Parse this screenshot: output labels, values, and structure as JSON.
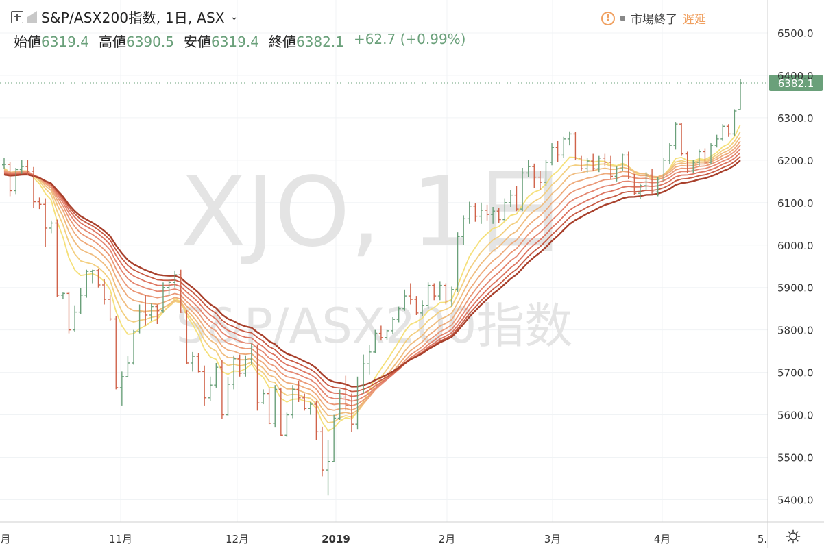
{
  "header": {
    "symbol_title": "S&P/ASX200指数, 1日, ASX",
    "chevron": "⌄",
    "ohlc": [
      {
        "label": "始値",
        "value": "6319.4"
      },
      {
        "label": "高値",
        "value": "6390.5"
      },
      {
        "label": "安値",
        "value": "6319.4"
      },
      {
        "label": "終値",
        "value": "6382.1"
      }
    ],
    "change": "+62.7 (+0.99%)",
    "market_status": "市場終了",
    "delay_label": "遅延",
    "warn_glyph": "!"
  },
  "watermark": {
    "ticker": "XJO, 1日",
    "name": "S&P/ASX200指数"
  },
  "icons": [
    "plus-icon",
    "flag-icon",
    "warning-icon",
    "gear-icon"
  ],
  "colors": {
    "up": "#6aa07a",
    "down": "#d0634a",
    "ribbon": [
      "#f5e07a",
      "#f3cf80",
      "#f0bc7e",
      "#eeaa7a",
      "#ea9776",
      "#e48670",
      "#dd7460",
      "#c75a44",
      "#a8402c"
    ]
  },
  "chart_data": {
    "type": "candlestick",
    "y_range": [
      5340,
      6580
    ],
    "y_ticks": [
      "6500.0",
      "6400.0",
      "6300.0",
      "6200.0",
      "6100.0",
      "6000.0",
      "5900.0",
      "5800.0",
      "5700.0",
      "5600.0",
      "5500.0",
      "5400.0"
    ],
    "x_tick_labels": [
      "月",
      "11月",
      "12月",
      "2019",
      "2月",
      "3月",
      "4月",
      "5."
    ],
    "last_price": "6382.1",
    "last_value": 6382.1,
    "bars": [
      [
        6189,
        6205,
        6180,
        6190
      ],
      [
        6190,
        6195,
        6115,
        6128
      ],
      [
        6128,
        6182,
        6120,
        6178
      ],
      [
        6178,
        6200,
        6168,
        6185
      ],
      [
        6185,
        6200,
        6166,
        6174
      ],
      [
        6174,
        6184,
        6088,
        6102
      ],
      [
        6102,
        6112,
        6085,
        6096
      ],
      [
        6096,
        6110,
        5996,
        6040
      ],
      [
        6040,
        6058,
        6028,
        6052
      ],
      [
        6052,
        6060,
        5878,
        5882
      ],
      [
        5882,
        5888,
        5872,
        5886
      ],
      [
        5886,
        5890,
        5792,
        5800
      ],
      [
        5800,
        5858,
        5796,
        5842
      ],
      [
        5842,
        5898,
        5838,
        5882
      ],
      [
        5882,
        5942,
        5876,
        5938
      ],
      [
        5938,
        5942,
        5910,
        5940
      ],
      [
        5940,
        5944,
        5900,
        5906
      ],
      [
        5906,
        5920,
        5860,
        5872
      ],
      [
        5872,
        5882,
        5822,
        5826
      ],
      [
        5826,
        5832,
        5660,
        5664
      ],
      [
        5664,
        5702,
        5622,
        5690
      ],
      [
        5690,
        5738,
        5688,
        5722
      ],
      [
        5722,
        5800,
        5718,
        5796
      ],
      [
        5796,
        5860,
        5792,
        5842
      ],
      [
        5842,
        5882,
        5810,
        5835
      ],
      [
        5835,
        5862,
        5822,
        5855
      ],
      [
        5855,
        5860,
        5814,
        5845
      ],
      [
        5845,
        5912,
        5840,
        5900
      ],
      [
        5900,
        5920,
        5880,
        5912
      ],
      [
        5912,
        5940,
        5900,
        5930
      ],
      [
        5930,
        5942,
        5840,
        5842
      ],
      [
        5842,
        5846,
        5720,
        5722
      ],
      [
        5722,
        5748,
        5702,
        5738
      ],
      [
        5738,
        5746,
        5700,
        5702
      ],
      [
        5702,
        5716,
        5622,
        5640
      ],
      [
        5640,
        5690,
        5632,
        5670
      ],
      [
        5670,
        5722,
        5664,
        5712
      ],
      [
        5712,
        5730,
        5590,
        5600
      ],
      [
        5600,
        5688,
        5598,
        5672
      ],
      [
        5672,
        5740,
        5660,
        5732
      ],
      [
        5732,
        5742,
        5690,
        5698
      ],
      [
        5698,
        5740,
        5690,
        5730
      ],
      [
        5730,
        5768,
        5718,
        5760
      ],
      [
        5760,
        5766,
        5610,
        5628
      ],
      [
        5628,
        5660,
        5625,
        5650
      ],
      [
        5650,
        5662,
        5578,
        5580
      ],
      [
        5580,
        5670,
        5570,
        5660
      ],
      [
        5660,
        5664,
        5550,
        5552
      ],
      [
        5552,
        5605,
        5548,
        5600
      ],
      [
        5600,
        5670,
        5592,
        5660
      ],
      [
        5660,
        5680,
        5630,
        5640
      ],
      [
        5640,
        5650,
        5610,
        5615
      ],
      [
        5615,
        5630,
        5600,
        5625
      ],
      [
        5625,
        5632,
        5540,
        5560
      ],
      [
        5560,
        5572,
        5455,
        5470
      ],
      [
        5470,
        5540,
        5410,
        5490
      ],
      [
        5490,
        5600,
        5488,
        5592
      ],
      [
        5592,
        5660,
        5588,
        5642
      ],
      [
        5642,
        5692,
        5610,
        5622
      ],
      [
        5622,
        5650,
        5560,
        5578
      ],
      [
        5578,
        5690,
        5565,
        5668
      ],
      [
        5668,
        5742,
        5650,
        5720
      ],
      [
        5720,
        5765,
        5695,
        5748
      ],
      [
        5748,
        5800,
        5745,
        5792
      ],
      [
        5792,
        5810,
        5775,
        5782
      ],
      [
        5782,
        5800,
        5776,
        5798
      ],
      [
        5798,
        5830,
        5790,
        5825
      ],
      [
        5825,
        5855,
        5818,
        5850
      ],
      [
        5850,
        5895,
        5845,
        5880
      ],
      [
        5880,
        5910,
        5860,
        5872
      ],
      [
        5872,
        5880,
        5835,
        5840
      ],
      [
        5840,
        5870,
        5832,
        5858
      ],
      [
        5858,
        5912,
        5850,
        5905
      ],
      [
        5905,
        5910,
        5870,
        5880
      ],
      [
        5880,
        5915,
        5870,
        5905
      ],
      [
        5905,
        5910,
        5860,
        5868
      ],
      [
        5868,
        5902,
        5855,
        5895
      ],
      [
        5895,
        6030,
        5890,
        6020
      ],
      [
        6020,
        6070,
        6000,
        6062
      ],
      [
        6062,
        6102,
        6050,
        6092
      ],
      [
        6092,
        6098,
        6055,
        6068
      ],
      [
        6068,
        6100,
        6050,
        6082
      ],
      [
        6082,
        6095,
        6058,
        6072
      ],
      [
        6072,
        6090,
        6050,
        6080
      ],
      [
        6080,
        6088,
        6052,
        6060
      ],
      [
        6060,
        6110,
        6056,
        6100
      ],
      [
        6100,
        6130,
        6090,
        6118
      ],
      [
        6118,
        6140,
        6080,
        6085
      ],
      [
        6085,
        6182,
        6080,
        6170
      ],
      [
        6170,
        6200,
        6160,
        6185
      ],
      [
        6185,
        6192,
        6135,
        6160
      ],
      [
        6160,
        6175,
        6130,
        6148
      ],
      [
        6148,
        6200,
        6140,
        6195
      ],
      [
        6195,
        6240,
        6188,
        6230
      ],
      [
        6230,
        6245,
        6195,
        6212
      ],
      [
        6212,
        6255,
        6205,
        6250
      ],
      [
        6250,
        6268,
        6235,
        6262
      ],
      [
        6262,
        6266,
        6200,
        6205
      ],
      [
        6205,
        6210,
        6175,
        6180
      ],
      [
        6180,
        6205,
        6170,
        6198
      ],
      [
        6198,
        6215,
        6175,
        6180
      ],
      [
        6180,
        6210,
        6172,
        6205
      ],
      [
        6205,
        6215,
        6185,
        6195
      ],
      [
        6195,
        6210,
        6155,
        6162
      ],
      [
        6162,
        6185,
        6150,
        6180
      ],
      [
        6180,
        6215,
        6175,
        6212
      ],
      [
        6212,
        6220,
        6155,
        6160
      ],
      [
        6160,
        6168,
        6118,
        6122
      ],
      [
        6122,
        6145,
        6108,
        6140
      ],
      [
        6140,
        6172,
        6130,
        6165
      ],
      [
        6165,
        6180,
        6120,
        6125
      ],
      [
        6125,
        6160,
        6115,
        6155
      ],
      [
        6155,
        6205,
        6150,
        6200
      ],
      [
        6200,
        6240,
        6190,
        6235
      ],
      [
        6235,
        6290,
        6225,
        6285
      ],
      [
        6285,
        6288,
        6210,
        6215
      ],
      [
        6215,
        6220,
        6170,
        6175
      ],
      [
        6175,
        6200,
        6170,
        6195
      ],
      [
        6195,
        6225,
        6185,
        6220
      ],
      [
        6220,
        6228,
        6190,
        6195
      ],
      [
        6195,
        6240,
        6190,
        6235
      ],
      [
        6235,
        6260,
        6230,
        6250
      ],
      [
        6250,
        6285,
        6245,
        6280
      ],
      [
        6280,
        6285,
        6255,
        6262
      ],
      [
        6262,
        6320,
        6258,
        6316
      ],
      [
        6319.4,
        6390.5,
        6319.4,
        6382.1
      ]
    ]
  }
}
